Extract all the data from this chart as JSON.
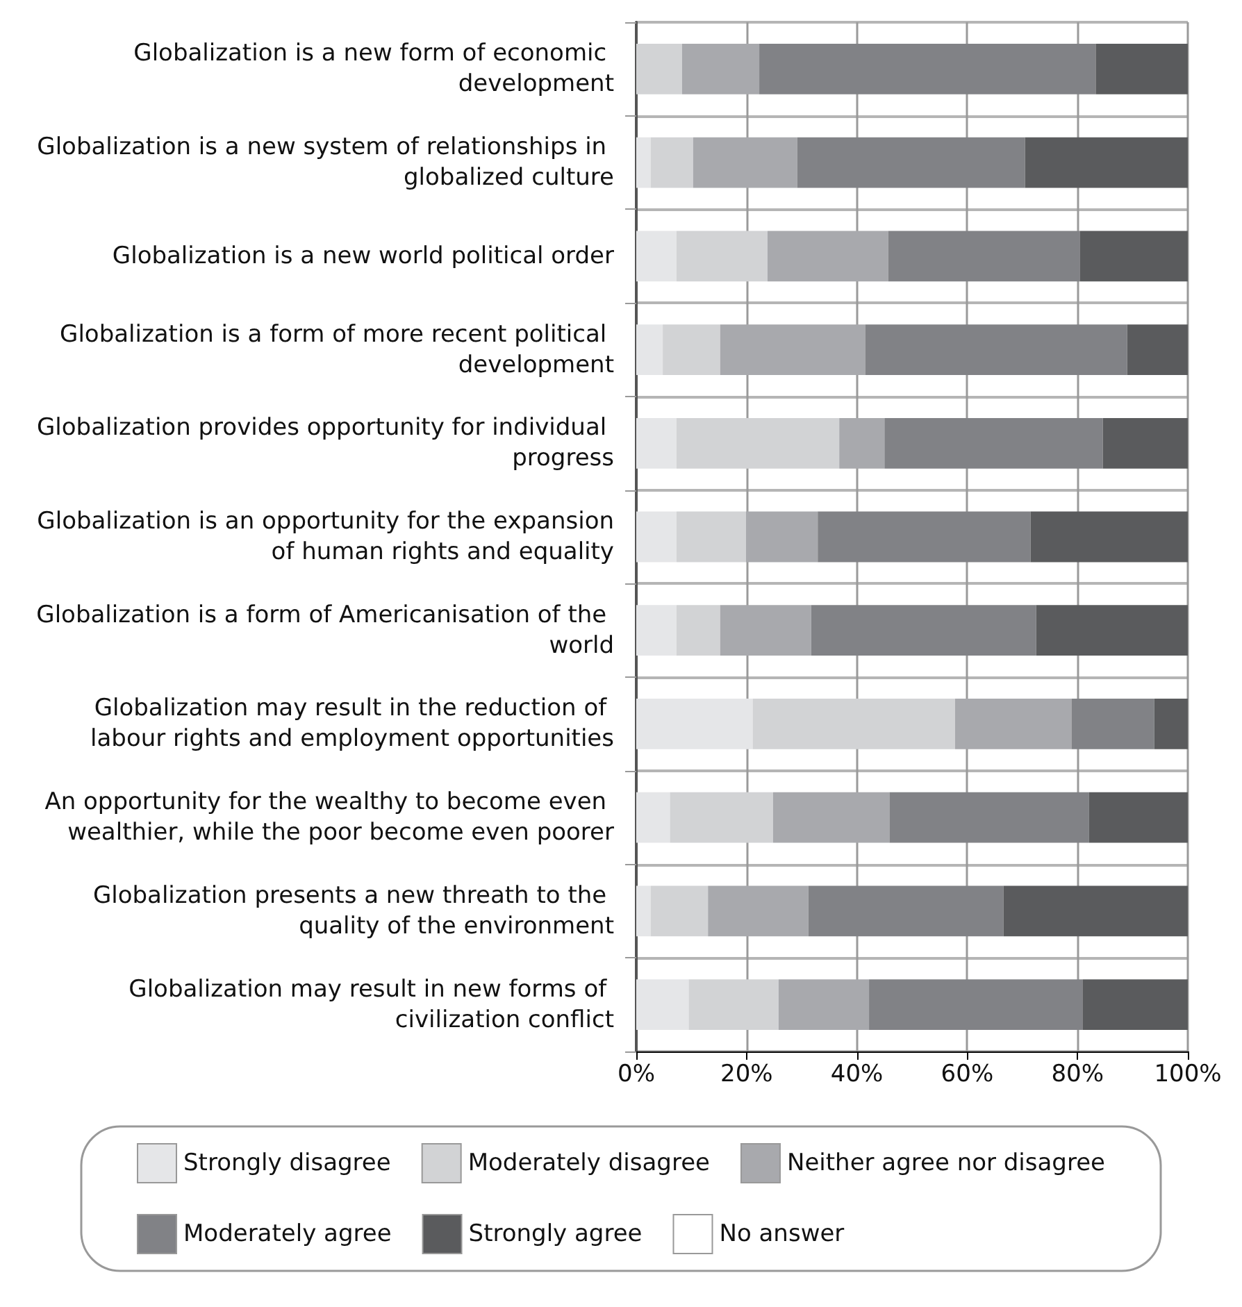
{
  "chart_data": {
    "type": "bar",
    "orientation": "horizontal",
    "stacked": true,
    "categories": [
      "Globalization is a new form of economic development",
      "Globalization is a new system of relationships in globalized culture",
      "Globalization is a new world political order",
      "Globalization is a form of more recent political development",
      "Globalization provides opportunity for individual progress",
      "Globalization is an opportunity for the expansion of human rights and equality",
      "Globalization is a form of Americanisation of the world",
      "Globalization may result in the reduction of labour rights and employment opportunities",
      "An opportunity for the wealthy to become even wealthier, while the poor become even poorer",
      "Globalization presents a new threath to the quality of the environment",
      "Globalization may result in new forms of civilization conflict"
    ],
    "series": [
      {
        "name": "Strongly disagree",
        "color": "#e5e6e8",
        "values": [
          0,
          2.6,
          7.3,
          4.8,
          7.3,
          7.3,
          7.3,
          21.1,
          6.1,
          2.6,
          9.5
        ]
      },
      {
        "name": "Moderately disagree",
        "color": "#d2d3d5",
        "values": [
          8.3,
          7.7,
          16.5,
          10.4,
          29.5,
          12.6,
          7.9,
          36.7,
          18.7,
          10.4,
          16.3
        ]
      },
      {
        "name": "Neither agree nor disagree",
        "color": "#a8a9ad",
        "values": [
          14,
          18.9,
          21.9,
          26.3,
          8.2,
          13,
          16.5,
          21.1,
          21.1,
          18.2,
          16.4
        ]
      },
      {
        "name": "Moderately agree",
        "color": "#818286",
        "values": [
          61,
          41.3,
          34.7,
          47.5,
          39.6,
          38.6,
          40.8,
          15,
          36.2,
          35.4,
          38.7
        ]
      },
      {
        "name": "Strongly agree",
        "color": "#5a5b5d",
        "values": [
          16.7,
          29.5,
          19.6,
          11,
          15.4,
          28.5,
          27.5,
          6.1,
          17.9,
          33.4,
          19.1
        ]
      },
      {
        "name": "No answer",
        "color": "#ffffff",
        "values": [
          0,
          0,
          0,
          0,
          0,
          0,
          0,
          0,
          0,
          0,
          0
        ]
      }
    ],
    "xlim": [
      0,
      100
    ],
    "xticks": [
      {
        "value": 0,
        "label": "0%"
      },
      {
        "value": 20,
        "label": "20%"
      },
      {
        "value": 40,
        "label": "40%"
      },
      {
        "value": 60,
        "label": "60%"
      },
      {
        "value": 80,
        "label": "80%"
      },
      {
        "value": 100,
        "label": "100%"
      }
    ],
    "grid": true,
    "legend": "bottom"
  }
}
